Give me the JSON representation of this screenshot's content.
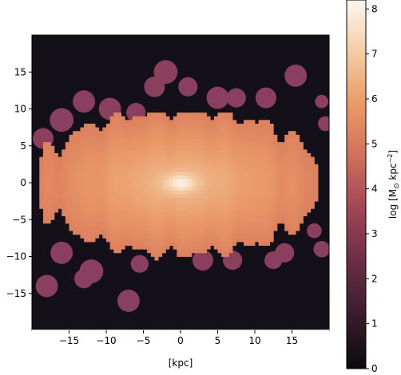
{
  "chart_data": {
    "type": "heatmap",
    "title": "",
    "xlabel": "[kpc]",
    "ylabel": "",
    "xlim": [
      -20,
      20
    ],
    "ylim": [
      -20,
      20
    ],
    "xticks": [
      -15,
      -10,
      -5,
      0,
      5,
      10,
      15
    ],
    "yticks": [
      -15,
      -10,
      -5,
      0,
      5,
      10,
      15
    ],
    "xtick_labels": [
      "−15",
      "−10",
      "−5",
      "0",
      "5",
      "10",
      "15"
    ],
    "ytick_labels": [
      "−15",
      "−10",
      "−5",
      "0",
      "5",
      "10",
      "15"
    ],
    "colorbar": {
      "label_prefix": "log [M",
      "label_sun": "⊙",
      "label_mid": " kpc",
      "label_sup": "−2",
      "label_suffix": "]",
      "range": [
        0,
        8.2
      ],
      "ticks": [
        0,
        1,
        2,
        3,
        4,
        5,
        6,
        7,
        8
      ],
      "tick_labels": [
        "0",
        "1",
        "2",
        "3",
        "4",
        "5",
        "6",
        "7",
        "8"
      ]
    },
    "background_color": "#14101a",
    "outskirt_color": "#8b3f5f",
    "disk": {
      "center": [
        0,
        0
      ],
      "peak_value": 8.1,
      "scale_x_kpc": 14.0,
      "scale_y_kpc": 7.0,
      "core_x_kpc": 2.0,
      "core_y_kpc": 1.2,
      "body_value_center": 6.7,
      "body_value_edge": 5.2,
      "body_extent_x": [
        -20,
        20
      ],
      "body_extent_y": [
        -10.5,
        9.5
      ]
    },
    "outskirt_blobs": [
      {
        "x": -2.0,
        "y": 15.0,
        "r": 1.6
      },
      {
        "x": -3.5,
        "y": 13.0,
        "r": 1.4
      },
      {
        "x": 1.0,
        "y": 13.0,
        "r": 1.3
      },
      {
        "x": 5.0,
        "y": 11.5,
        "r": 1.5
      },
      {
        "x": 7.5,
        "y": 11.5,
        "r": 1.3
      },
      {
        "x": 11.5,
        "y": 11.5,
        "r": 1.4
      },
      {
        "x": 15.5,
        "y": 14.5,
        "r": 1.5
      },
      {
        "x": 19.0,
        "y": 11.0,
        "r": 0.9
      },
      {
        "x": -13.0,
        "y": 11.0,
        "r": 1.5
      },
      {
        "x": -9.5,
        "y": 10.0,
        "r": 1.5
      },
      {
        "x": -16.0,
        "y": 8.5,
        "r": 1.6
      },
      {
        "x": -6.0,
        "y": 9.5,
        "r": 1.3
      },
      {
        "x": -18.5,
        "y": 6.0,
        "r": 1.4
      },
      {
        "x": -16.0,
        "y": -9.5,
        "r": 1.5
      },
      {
        "x": -12.0,
        "y": -12.0,
        "r": 1.6
      },
      {
        "x": -13.0,
        "y": -13.0,
        "r": 1.3
      },
      {
        "x": -18.0,
        "y": -14.0,
        "r": 1.5
      },
      {
        "x": -7.0,
        "y": -16.0,
        "r": 1.5
      },
      {
        "x": -5.5,
        "y": -11.0,
        "r": 1.2
      },
      {
        "x": 3.0,
        "y": -10.5,
        "r": 1.4
      },
      {
        "x": 7.0,
        "y": -10.5,
        "r": 1.3
      },
      {
        "x": 12.5,
        "y": -10.5,
        "r": 1.2
      },
      {
        "x": 14.0,
        "y": -9.5,
        "r": 1.3
      },
      {
        "x": 19.0,
        "y": -9.0,
        "r": 1.1
      },
      {
        "x": 18.0,
        "y": -6.5,
        "r": 1.0
      },
      {
        "x": 19.5,
        "y": 8.0,
        "r": 1.0
      }
    ]
  }
}
